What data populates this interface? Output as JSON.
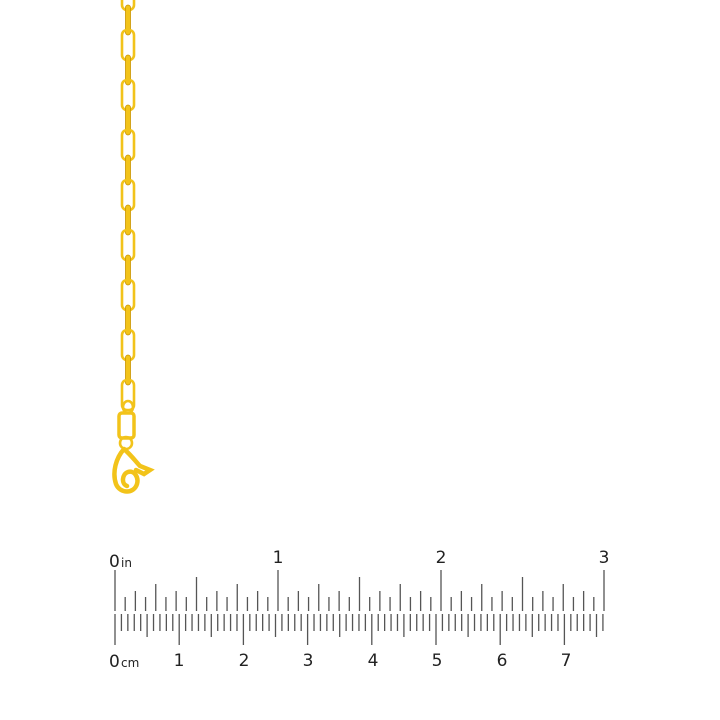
{
  "product": {
    "material_color": "#f2c31a",
    "shadow_color": "#c99400"
  },
  "ruler": {
    "inch_unit": "in",
    "cm_unit": "cm",
    "inch_labels": [
      "0",
      "1",
      "2",
      "3"
    ],
    "cm_labels": [
      "0",
      "1",
      "2",
      "3",
      "4",
      "5",
      "6",
      "7"
    ],
    "tick_color": "#555555"
  }
}
